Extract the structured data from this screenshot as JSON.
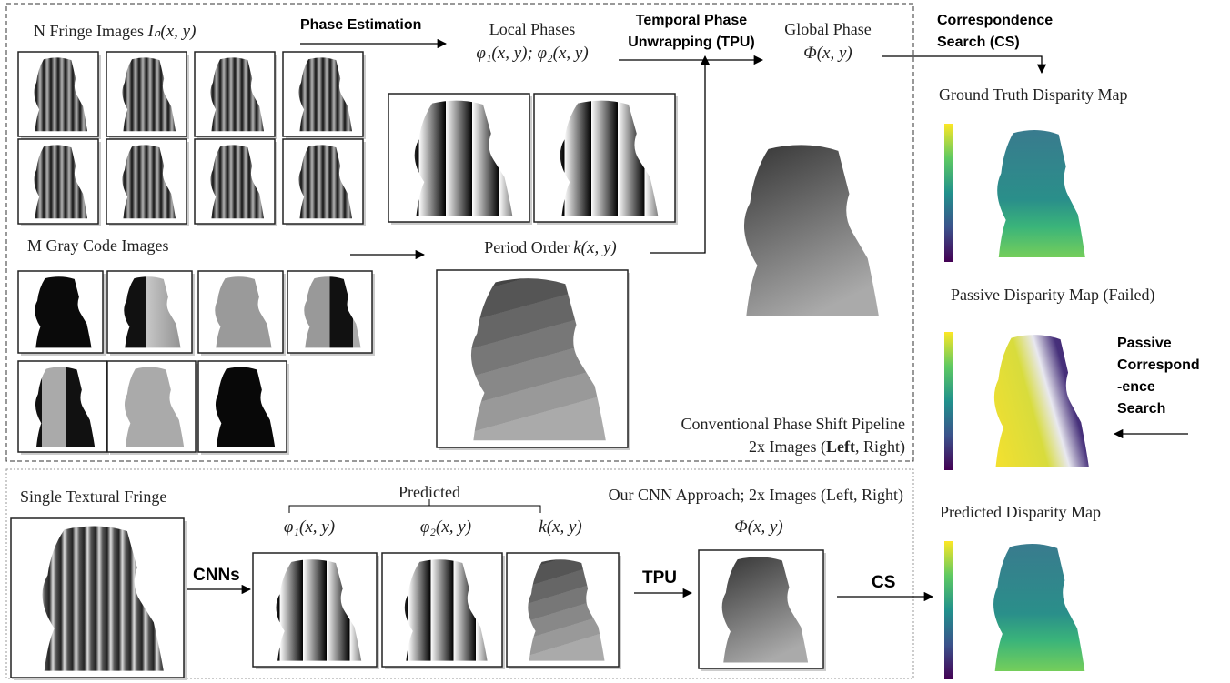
{
  "pipeline": {
    "fringe_label": "N Fringe Images ",
    "fringe_math": "Iₙ(x, y)",
    "phase_estimation": "Phase Estimation",
    "local_phases": "Local Phases",
    "local_phases_math": "φ₁(x, y); φ₂(x, y)",
    "tpu": [
      "Temporal Phase",
      "Unwrapping (TPU)"
    ],
    "global_phase": "Global Phase",
    "global_phase_math": "Φ(x, y)",
    "cs": [
      "Correspondence",
      "Search (CS)"
    ],
    "gray_code": "M Gray Code Images",
    "period_order": "Period Order ",
    "period_order_math": "k(x, y)",
    "caption": "Conventional Phase Shift Pipeline",
    "caption_images": [
      "2x Images (",
      "Left",
      ", Right)"
    ]
  },
  "disparity": {
    "ground_truth": "Ground Truth Disparity Map",
    "passive": "Passive Disparity Map (Failed)",
    "passive_search": [
      "Passive",
      "Correspond",
      "-ence",
      "Search"
    ],
    "predicted": "Predicted Disparity Map"
  },
  "cnn": {
    "input": "Single Textural Fringe",
    "predicted": "Predicted",
    "caption": "Our CNN Approach; 2x Images (Left, Right)",
    "phi1": "φ₁(x, y)",
    "phi2": "φ₂(x, y)",
    "k": "k(x, y)",
    "global": "Φ(x, y)",
    "cnns": "CNNs",
    "tpu": "TPU",
    "cs": "CS"
  }
}
